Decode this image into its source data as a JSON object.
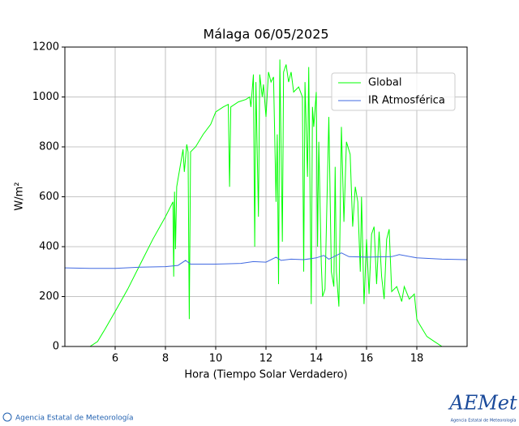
{
  "chart_data": {
    "type": "line",
    "title": "Málaga 06/05/2025",
    "xlabel": "Hora (Tiempo Solar Verdadero)",
    "ylabel": "W/m²",
    "xlim": [
      4,
      20
    ],
    "xticks": [
      6,
      8,
      10,
      12,
      14,
      16,
      18
    ],
    "ylim": [
      0,
      1200
    ],
    "yticks": [
      0,
      200,
      400,
      600,
      800,
      1000,
      1200
    ],
    "grid": true,
    "legend": "upper right",
    "series": [
      {
        "name": "Global",
        "color": "#00ff00",
        "x": [
          4.0,
          5.0,
          5.3,
          5.6,
          6.0,
          6.5,
          7.0,
          7.5,
          8.0,
          8.3,
          8.33,
          8.36,
          8.4,
          8.45,
          8.6,
          8.7,
          8.75,
          8.85,
          8.9,
          8.95,
          9.0,
          9.2,
          9.5,
          9.8,
          10.0,
          10.3,
          10.5,
          10.55,
          10.6,
          10.9,
          11.2,
          11.35,
          11.4,
          11.5,
          11.55,
          11.6,
          11.7,
          11.75,
          11.85,
          11.9,
          12.0,
          12.1,
          12.2,
          12.3,
          12.4,
          12.45,
          12.5,
          12.55,
          12.65,
          12.7,
          12.8,
          12.9,
          13.0,
          13.1,
          13.3,
          13.45,
          13.5,
          13.55,
          13.65,
          13.7,
          13.8,
          13.85,
          13.9,
          14.0,
          14.05,
          14.1,
          14.2,
          14.25,
          14.35,
          14.5,
          14.6,
          14.7,
          14.75,
          14.8,
          14.9,
          15.0,
          15.1,
          15.2,
          15.35,
          15.45,
          15.55,
          15.65,
          15.75,
          15.8,
          15.9,
          16.0,
          16.1,
          16.2,
          16.3,
          16.4,
          16.5,
          16.6,
          16.7,
          16.8,
          16.9,
          17.0,
          17.2,
          17.4,
          17.5,
          17.7,
          17.9,
          18.0,
          18.1,
          18.4,
          18.7,
          19.0,
          20.0
        ],
        "values": [
          0,
          0,
          20,
          70,
          140,
          230,
          330,
          430,
          520,
          580,
          280,
          620,
          390,
          640,
          730,
          790,
          700,
          810,
          780,
          110,
          780,
          800,
          850,
          890,
          940,
          960,
          970,
          640,
          960,
          980,
          990,
          1000,
          960,
          1090,
          400,
          1060,
          520,
          1090,
          1000,
          1050,
          920,
          1100,
          1060,
          1080,
          580,
          850,
          250,
          1150,
          420,
          1100,
          1130,
          1060,
          1100,
          1020,
          1040,
          1000,
          300,
          1060,
          680,
          1120,
          170,
          960,
          880,
          1020,
          400,
          820,
          330,
          200,
          230,
          920,
          300,
          240,
          720,
          300,
          160,
          880,
          500,
          820,
          770,
          480,
          640,
          580,
          300,
          600,
          170,
          430,
          210,
          450,
          480,
          250,
          460,
          280,
          190,
          430,
          470,
          220,
          240,
          180,
          240,
          190,
          210,
          110,
          90,
          40,
          20,
          0,
          0
        ]
      },
      {
        "name": "IR Atmosférica",
        "color": "#4169e1",
        "x": [
          4,
          5,
          6,
          7,
          8,
          8.5,
          8.8,
          9,
          10,
          11,
          11.5,
          12,
          12.4,
          12.6,
          13,
          13.5,
          14,
          14.3,
          14.5,
          15,
          15.3,
          16,
          17,
          17.3,
          18,
          19,
          20
        ],
        "values": [
          315,
          313,
          313,
          318,
          320,
          325,
          345,
          330,
          330,
          333,
          340,
          338,
          358,
          345,
          350,
          348,
          355,
          365,
          350,
          375,
          360,
          358,
          360,
          368,
          355,
          350,
          348
        ]
      }
    ]
  },
  "footer": {
    "agency": "Agencia Estatal de Meteorología",
    "logo": "AEMet",
    "logo_sub": "Agencia Estatal de Meteorología"
  }
}
